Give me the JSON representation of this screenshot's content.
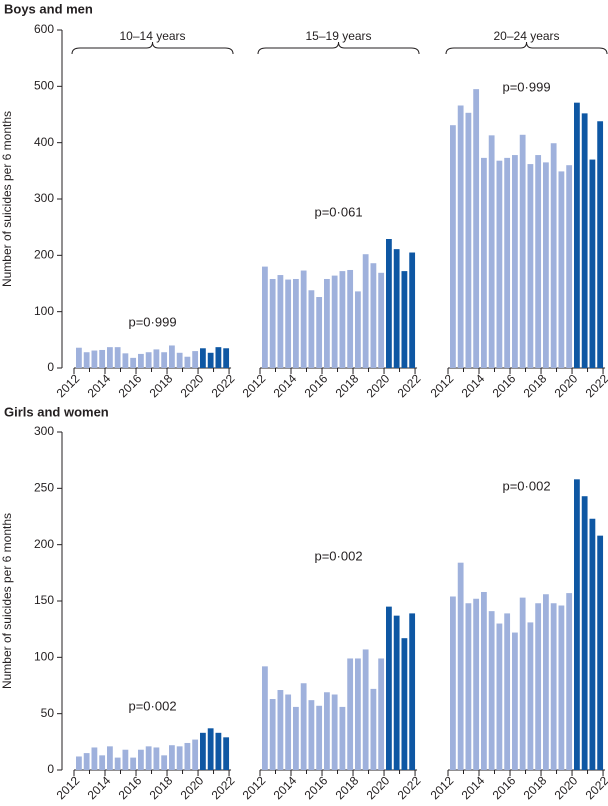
{
  "colors": {
    "pre": "#9fb1dc",
    "post": "#0e57a3",
    "axis": "#231f20"
  },
  "chart_data": [
    {
      "type": "bar",
      "title": "Boys and men",
      "ylabel": "Number of suicides per 6 months",
      "ylim": [
        0,
        600
      ],
      "yticks": [
        0,
        100,
        200,
        300,
        400,
        500,
        600
      ],
      "xticks": [
        "2012",
        "2014",
        "2016",
        "2018",
        "2020",
        "2022"
      ],
      "post_start_index": 16,
      "groups": [
        {
          "label": "10–14 years",
          "p_value": "p=0·999",
          "values": [
            36,
            28,
            31,
            32,
            37,
            37,
            26,
            18,
            25,
            28,
            33,
            28,
            40,
            27,
            20,
            30,
            35,
            27,
            37,
            35
          ]
        },
        {
          "label": "15–19 years",
          "p_value": "p=0·061",
          "values": [
            180,
            158,
            165,
            157,
            158,
            173,
            138,
            126,
            158,
            164,
            172,
            174,
            136,
            202,
            186,
            169,
            229,
            211,
            172,
            205
          ]
        },
        {
          "label": "20–24 years",
          "p_value": "p=0·999",
          "values": [
            431,
            466,
            453,
            495,
            373,
            413,
            368,
            373,
            378,
            414,
            362,
            378,
            365,
            399,
            349,
            360,
            471,
            452,
            370,
            438
          ]
        }
      ]
    },
    {
      "type": "bar",
      "title": "Girls and women",
      "ylabel": "Number of suicides per 6 months",
      "ylim": [
        0,
        300
      ],
      "yticks": [
        0,
        50,
        100,
        150,
        200,
        250,
        300
      ],
      "xticks": [
        "2012",
        "2014",
        "2016",
        "2018",
        "2020",
        "2022"
      ],
      "post_start_index": 16,
      "groups": [
        {
          "label": "",
          "p_value": "p=0·002",
          "values": [
            12,
            15,
            20,
            13,
            21,
            11,
            18,
            11,
            18,
            21,
            20,
            13,
            22,
            21,
            24,
            27,
            33,
            37,
            33,
            29
          ]
        },
        {
          "label": "",
          "p_value": "p=0·002",
          "values": [
            92,
            63,
            71,
            67,
            56,
            77,
            62,
            57,
            69,
            67,
            56,
            99,
            99,
            107,
            72,
            99,
            145,
            137,
            117,
            139
          ]
        },
        {
          "label": "",
          "p_value": "p=0·002",
          "values": [
            154,
            184,
            148,
            152,
            158,
            141,
            130,
            139,
            122,
            153,
            131,
            148,
            156,
            148,
            146,
            157,
            258,
            243,
            223,
            208
          ]
        }
      ]
    }
  ]
}
